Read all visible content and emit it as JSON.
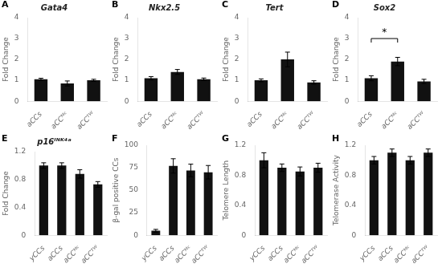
{
  "chart_data": [
    {
      "type": "bar",
      "panel_label": "A",
      "title": "Gata4",
      "ylabel": "Fold Change",
      "categories": [
        "aCCs",
        "aCCᴹᶜ",
        "aCCᵀᵂ"
      ],
      "values": [
        1.05,
        0.85,
        1.0
      ],
      "errors": [
        0.05,
        0.12,
        0.05
      ],
      "ylim": [
        0,
        4
      ],
      "yticks": [
        0,
        1,
        2,
        3,
        4
      ],
      "color": "#111111",
      "grid": false
    },
    {
      "type": "bar",
      "panel_label": "B",
      "title": "Nkx2.5",
      "ylabel": "Fold Change",
      "categories": [
        "aCCs",
        "aCCᴹᶜ",
        "aCCᵀᵂ"
      ],
      "values": [
        1.1,
        1.4,
        1.05
      ],
      "errors": [
        0.08,
        0.12,
        0.06
      ],
      "ylim": [
        0,
        4
      ],
      "yticks": [
        0,
        1,
        2,
        3,
        4
      ],
      "color": "#111111",
      "grid": false
    },
    {
      "type": "bar",
      "panel_label": "C",
      "title": "Tert",
      "ylabel": "Fold Change",
      "categories": [
        "aCCs",
        "aCCᴹᶜ",
        "aCCᵀᵂ"
      ],
      "values": [
        1.0,
        2.0,
        0.9
      ],
      "errors": [
        0.07,
        0.35,
        0.08
      ],
      "ylim": [
        0,
        4
      ],
      "yticks": [
        0,
        1,
        2,
        3,
        4
      ],
      "color": "#111111",
      "grid": false
    },
    {
      "type": "bar",
      "panel_label": "D",
      "title": "Sox2",
      "ylabel": "Fold Change",
      "categories": [
        "aCCs",
        "aCCᴹᶜ",
        "aCCᵀᵂ"
      ],
      "values": [
        1.1,
        1.9,
        0.95
      ],
      "errors": [
        0.12,
        0.2,
        0.1
      ],
      "ylim": [
        0,
        4
      ],
      "yticks": [
        0,
        1,
        2,
        3,
        4
      ],
      "color": "#111111",
      "grid": false,
      "annotations": [
        {
          "text": "*",
          "x": [
            "aCCs",
            "aCCᴹᶜ"
          ],
          "y": 3.0
        }
      ]
    },
    {
      "type": "bar",
      "panel_label": "E",
      "title": "p16ᴵᴺᴷ⁴ᵃ",
      "ylabel": "Fold Change",
      "categories": [
        "yCCs",
        "aCCs",
        "aCCᴹᶜ",
        "aCCᵀᵂ"
      ],
      "values": [
        1.0,
        1.0,
        0.88,
        0.73
      ],
      "errors": [
        0.04,
        0.04,
        0.06,
        0.04
      ],
      "ylim": [
        0,
        1.2
      ],
      "yticks": [
        0,
        0.4,
        0.8,
        1.2
      ],
      "color": "#111111",
      "grid": false
    },
    {
      "type": "bar",
      "panel_label": "F",
      "ylabel": "β-gal positive CCs",
      "categories": [
        "yCCs",
        "aCCs",
        "aCCᴹᶜ",
        "aCCᵀᵂ"
      ],
      "values": [
        5.0,
        77.0,
        72.0,
        70.0
      ],
      "errors": [
        1.5,
        8.0,
        7.0,
        7.5
      ],
      "ylim": [
        0,
        100
      ],
      "yticks": [
        0,
        25,
        50,
        75,
        100
      ],
      "color": "#111111",
      "grid": false
    },
    {
      "type": "bar",
      "panel_label": "G",
      "ylabel": "Telomere Length",
      "categories": [
        "yCCs",
        "aCCs",
        "aCCᴹᶜ",
        "aCCᵀᵂ"
      ],
      "values": [
        1.0,
        0.9,
        0.85,
        0.9
      ],
      "errors": [
        0.1,
        0.05,
        0.06,
        0.06
      ],
      "ylim": [
        0,
        1.2
      ],
      "yticks": [
        0,
        0.4,
        0.8,
        1.2
      ],
      "color": "#111111",
      "grid": false
    },
    {
      "type": "bar",
      "panel_label": "H",
      "ylabel": "Telomerase Activity",
      "categories": [
        "yCCs",
        "aCCs",
        "aCCᴹᶜ",
        "aCCᵀᵂ"
      ],
      "values": [
        1.0,
        1.1,
        1.0,
        1.1
      ],
      "errors": [
        0.05,
        0.05,
        0.05,
        0.05
      ],
      "ylim": [
        0,
        1.2
      ],
      "yticks": [
        0,
        0.4,
        0.8,
        1.2
      ],
      "color": "#111111",
      "grid": false
    }
  ]
}
